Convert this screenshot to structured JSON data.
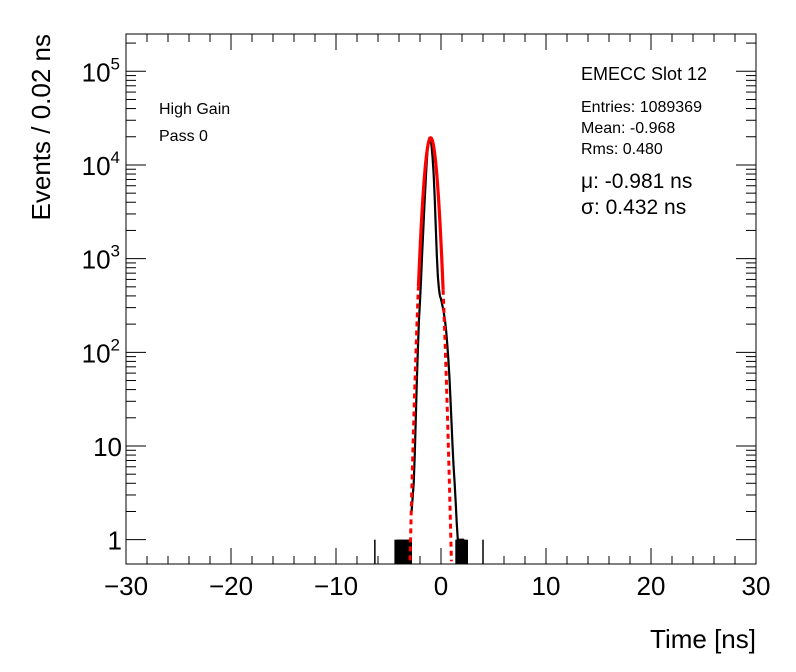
{
  "chart_data": {
    "type": "line",
    "xlabel": "Time [ns]",
    "ylabel": "Events / 0.02 ns",
    "xlim": [
      -30,
      30
    ],
    "ylim": [
      0.55,
      250000
    ],
    "y_scale": "log",
    "x_ticks": [
      {
        "value": -30,
        "label": "−30"
      },
      {
        "value": -20,
        "label": "−20"
      },
      {
        "value": -10,
        "label": "−10"
      },
      {
        "value": 0,
        "label": "0"
      },
      {
        "value": 10,
        "label": "10"
      },
      {
        "value": 20,
        "label": "20"
      },
      {
        "value": 30,
        "label": "30"
      }
    ],
    "y_ticks": [
      {
        "value": 1,
        "label": "1"
      },
      {
        "value": 10,
        "label": "10"
      },
      {
        "value": 100,
        "base": "10",
        "exp": "2"
      },
      {
        "value": 1000,
        "base": "10",
        "exp": "3"
      },
      {
        "value": 10000,
        "base": "10",
        "exp": "4"
      },
      {
        "value": 100000,
        "base": "10",
        "exp": "5"
      }
    ],
    "annotations": {
      "gain": "High Gain",
      "pass": "Pass 0",
      "slot": "EMECC Slot 12",
      "entries": "Entries: 1089369",
      "mean": "Mean: -0.968",
      "rms": "Rms: 0.480",
      "mu": "μ: -0.981 ns",
      "sigma": "σ: 0.432 ns"
    },
    "series": [
      {
        "kind": "histogram",
        "color": "#000000",
        "x": [
          -6.3,
          -4.2,
          -4.0,
          -3.8,
          -3.6,
          -3.4,
          -3.2,
          -3.0,
          -2.8,
          -2.6,
          -2.5,
          -2.4,
          -2.3,
          -2.2,
          -2.1,
          -2.0,
          -1.9,
          -1.8,
          -1.7,
          -1.6,
          -1.5,
          -1.4,
          -1.3,
          -1.2,
          -1.1,
          -1.0,
          -0.9,
          -0.8,
          -0.7,
          -0.6,
          -0.5,
          -0.4,
          -0.3,
          -0.2,
          -0.1,
          0.0,
          0.1,
          0.2,
          0.3,
          0.4,
          0.5,
          0.6,
          0.7,
          0.8,
          0.9,
          1.0,
          1.1,
          1.2,
          1.3,
          1.4,
          1.5,
          1.6,
          1.7,
          1.8,
          1.9,
          2.0,
          2.1,
          2.2,
          2.5,
          4.0
        ],
        "y": [
          1,
          1,
          1,
          1,
          1,
          1,
          1,
          1,
          2,
          4,
          8,
          20,
          50,
          110,
          220,
          350,
          600,
          1100,
          1900,
          3300,
          5500,
          9000,
          13500,
          17500,
          19500,
          19000,
          16000,
          12000,
          8000,
          4500,
          2200,
          1100,
          650,
          480,
          400,
          370,
          330,
          290,
          250,
          210,
          165,
          120,
          85,
          55,
          32,
          18,
          10,
          6,
          4,
          2.5,
          1.5,
          1,
          1,
          1,
          1,
          1,
          1,
          1,
          1,
          1
        ]
      },
      {
        "kind": "gaussian-fit",
        "color": "#ff0000",
        "amplitude": 19500,
        "mean": -0.981,
        "sigma": 0.432,
        "solid_range": [
          -2.15,
          0.2
        ]
      }
    ]
  }
}
